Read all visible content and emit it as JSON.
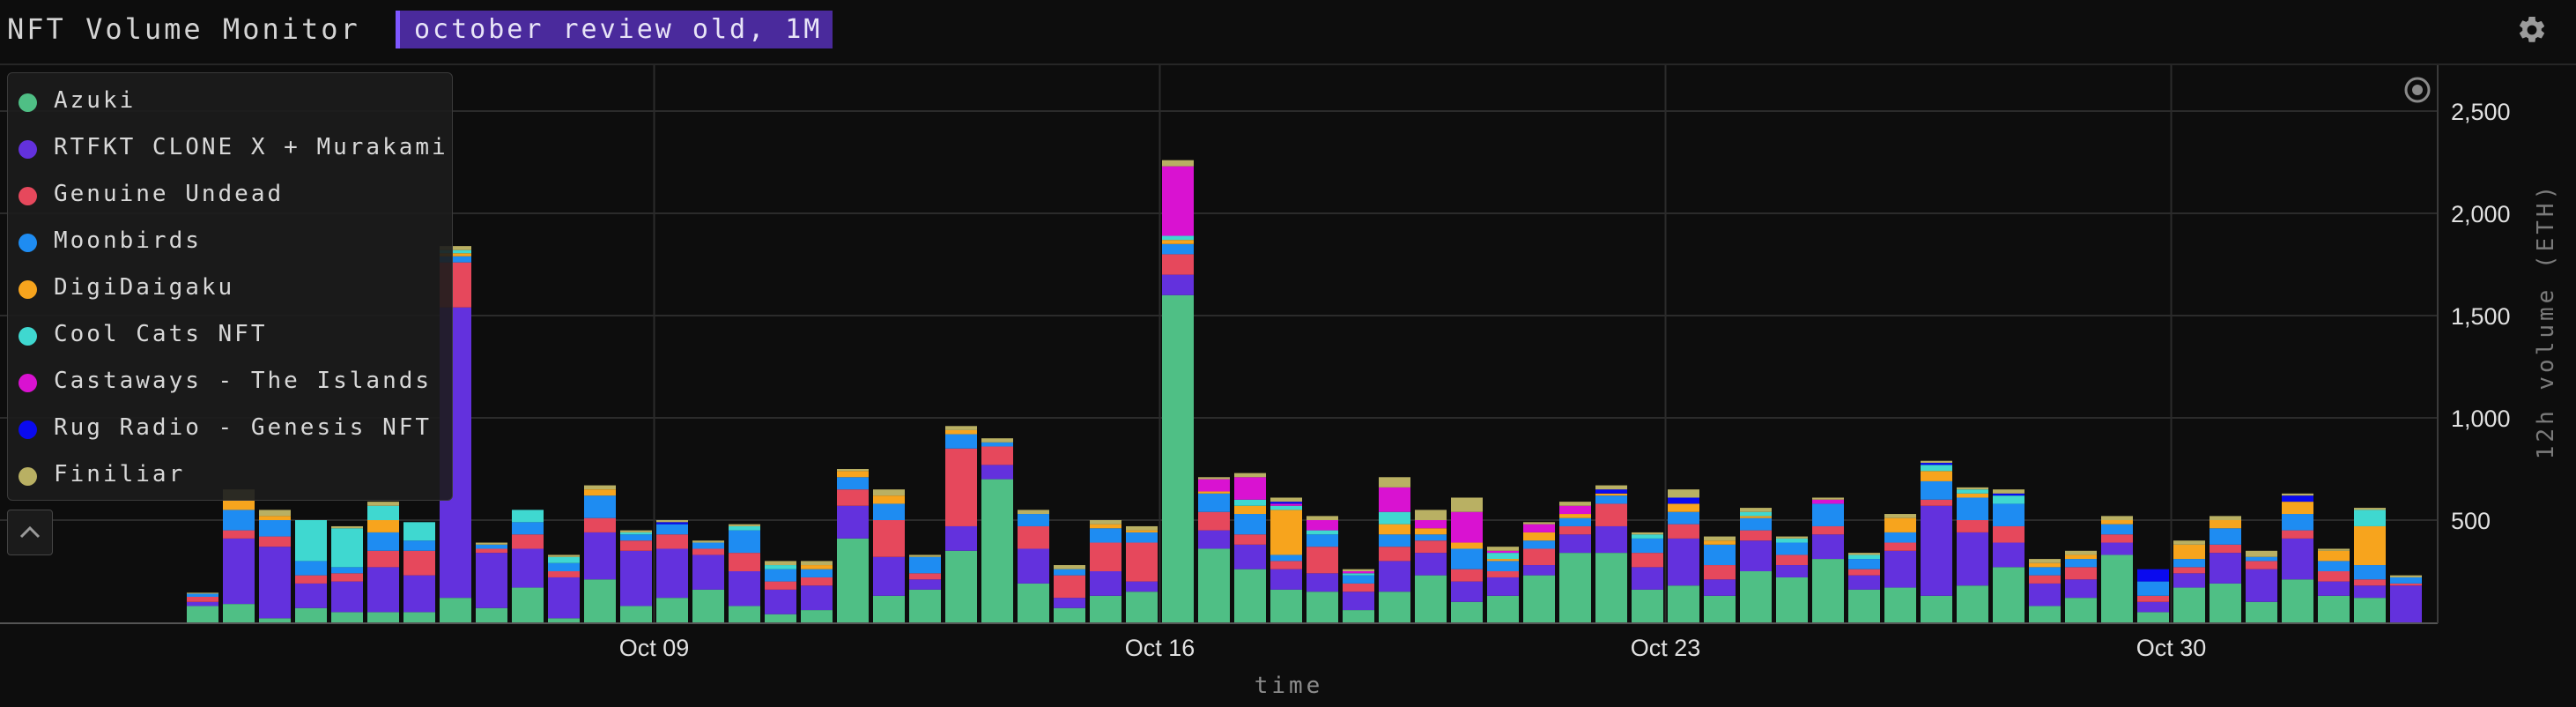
{
  "app": {
    "title": "NFT Volume Monitor",
    "range_label": "october review old, 1M"
  },
  "colors": {
    "Azuki": "#4fbf85",
    "RTFKT CLONE X + Murakami": "#6331dd",
    "Genuine Undead": "#e6485c",
    "Moonbirds": "#1e8cf2",
    "DigiDaigaku": "#f7a41d",
    "Cool Cats NFT": "#3fd8d0",
    "Castaways - The Islands": "#d912d1",
    "Rug Radio - Genesis NFT": "#0a0aef",
    "Finiliar": "#b9b063"
  },
  "legend": {
    "items": [
      {
        "label": "Azuki",
        "color": "#4fbf85"
      },
      {
        "label": "RTFKT CLONE X + Murakami",
        "color": "#6331dd"
      },
      {
        "label": "Genuine Undead",
        "color": "#e6485c"
      },
      {
        "label": "Moonbirds",
        "color": "#1e8cf2"
      },
      {
        "label": "DigiDaigaku",
        "color": "#f7a41d"
      },
      {
        "label": "Cool Cats NFT",
        "color": "#3fd8d0"
      },
      {
        "label": "Castaways - The Islands",
        "color": "#d912d1"
      },
      {
        "label": "Rug Radio - Genesis NFT",
        "color": "#0a0aef"
      },
      {
        "label": "Finiliar",
        "color": "#b9b063"
      }
    ]
  },
  "icons": {
    "settings": "gear-icon",
    "collapse": "chevron-up-icon",
    "focus": "target-icon"
  },
  "chart_data": {
    "type": "bar",
    "stacked": true,
    "xlabel": "time",
    "ylabel": "12h volume (ETH)",
    "ylim": [
      0,
      2650
    ],
    "yticks": [
      500,
      1000,
      1500,
      2000,
      2500
    ],
    "ytick_labels": [
      "500",
      "1,000",
      "1,500",
      "2,000",
      "2,500"
    ],
    "y_axis_side": "right",
    "grid": true,
    "legend_position": "top-left",
    "x_start": "Oct 02 12:00",
    "x_step_hours": 12,
    "x_ticks": [
      {
        "index": 13,
        "label": "Oct 09"
      },
      {
        "index": 27,
        "label": "Oct 16"
      },
      {
        "index": 41,
        "label": "Oct 23"
      },
      {
        "index": 55,
        "label": "Oct 30"
      }
    ],
    "series_order": [
      "Azuki",
      "RTFKT CLONE X + Murakami",
      "Genuine Undead",
      "Moonbirds",
      "DigiDaigaku",
      "Cool Cats NFT",
      "Castaways - The Islands",
      "Rug Radio - Genesis NFT",
      "Finiliar"
    ],
    "bars": [
      {
        "Azuki": 80,
        "RTFKT CLONE X + Murakami": 20,
        "Genuine Undead": 25,
        "Moonbirds": 15,
        "Finiliar": 5
      },
      {
        "Azuki": 90,
        "RTFKT CLONE X + Murakami": 320,
        "Genuine Undead": 40,
        "Moonbirds": 100,
        "DigiDaigaku": 50,
        "Finiliar": 50
      },
      {
        "Azuki": 20,
        "RTFKT CLONE X + Murakami": 350,
        "Genuine Undead": 50,
        "Moonbirds": 80,
        "DigiDaigaku": 20,
        "Finiliar": 30
      },
      {
        "Azuki": 70,
        "RTFKT CLONE X + Murakami": 120,
        "Genuine Undead": 40,
        "Moonbirds": 70,
        "Cool Cats NFT": 200
      },
      {
        "Azuki": 50,
        "RTFKT CLONE X + Murakami": 150,
        "Genuine Undead": 40,
        "Moonbirds": 30,
        "Cool Cats NFT": 190,
        "Finiliar": 10
      },
      {
        "Azuki": 50,
        "RTFKT CLONE X + Murakami": 220,
        "Genuine Undead": 80,
        "Moonbirds": 90,
        "DigiDaigaku": 60,
        "Cool Cats NFT": 70,
        "Finiliar": 20
      },
      {
        "Azuki": 50,
        "RTFKT CLONE X + Murakami": 180,
        "Genuine Undead": 120,
        "Moonbirds": 50,
        "Cool Cats NFT": 90
      },
      {
        "Azuki": 120,
        "RTFKT CLONE X + Murakami": 1420,
        "Genuine Undead": 220,
        "Moonbirds": 30,
        "DigiDaigaku": 15,
        "Cool Cats NFT": 15,
        "Finiliar": 20
      },
      {
        "Azuki": 70,
        "RTFKT CLONE X + Murakami": 270,
        "Genuine Undead": 20,
        "Moonbirds": 20,
        "Finiliar": 10
      },
      {
        "Azuki": 170,
        "RTFKT CLONE X + Murakami": 190,
        "Genuine Undead": 70,
        "Moonbirds": 60,
        "Cool Cats NFT": 60
      },
      {
        "Azuki": 20,
        "RTFKT CLONE X + Murakami": 200,
        "Genuine Undead": 30,
        "Moonbirds": 40,
        "Cool Cats NFT": 30,
        "Finiliar": 10
      },
      {
        "Azuki": 210,
        "RTFKT CLONE X + Murakami": 230,
        "Genuine Undead": 70,
        "Moonbirds": 110,
        "DigiDaigaku": 30,
        "Finiliar": 20
      },
      {
        "Azuki": 80,
        "RTFKT CLONE X + Murakami": 270,
        "Genuine Undead": 50,
        "Moonbirds": 30,
        "Cool Cats NFT": 10,
        "Finiliar": 10
      },
      {
        "Azuki": 120,
        "RTFKT CLONE X + Murakami": 240,
        "Genuine Undead": 70,
        "Moonbirds": 50,
        "Rug Radio - Genesis NFT": 10,
        "Finiliar": 10
      },
      {
        "Azuki": 160,
        "RTFKT CLONE X + Murakami": 170,
        "Genuine Undead": 30,
        "Moonbirds": 30,
        "Finiliar": 10
      },
      {
        "Azuki": 80,
        "RTFKT CLONE X + Murakami": 170,
        "Genuine Undead": 90,
        "Moonbirds": 110,
        "Cool Cats NFT": 20,
        "Finiliar": 10
      },
      {
        "Azuki": 40,
        "RTFKT CLONE X + Murakami": 120,
        "Genuine Undead": 40,
        "Moonbirds": 60,
        "Cool Cats NFT": 20,
        "Finiliar": 20
      },
      {
        "Azuki": 60,
        "RTFKT CLONE X + Murakami": 120,
        "Genuine Undead": 40,
        "Moonbirds": 40,
        "DigiDaigaku": 20,
        "Finiliar": 20
      },
      {
        "Azuki": 410,
        "RTFKT CLONE X + Murakami": 160,
        "Genuine Undead": 80,
        "Moonbirds": 60,
        "DigiDaigaku": 30,
        "Finiliar": 10
      },
      {
        "Azuki": 130,
        "RTFKT CLONE X + Murakami": 190,
        "Genuine Undead": 180,
        "Moonbirds": 80,
        "DigiDaigaku": 40,
        "Finiliar": 30
      },
      {
        "Azuki": 160,
        "RTFKT CLONE X + Murakami": 50,
        "Genuine Undead": 30,
        "Moonbirds": 80,
        "Finiliar": 10
      },
      {
        "Azuki": 350,
        "RTFKT CLONE X + Murakami": 120,
        "Genuine Undead": 380,
        "Moonbirds": 70,
        "DigiDaigaku": 20,
        "Finiliar": 20
      },
      {
        "Azuki": 700,
        "RTFKT CLONE X + Murakami": 70,
        "Genuine Undead": 90,
        "Moonbirds": 20,
        "Finiliar": 20
      },
      {
        "Azuki": 190,
        "RTFKT CLONE X + Murakami": 170,
        "Genuine Undead": 110,
        "Moonbirds": 60,
        "Finiliar": 20
      },
      {
        "Azuki": 70,
        "RTFKT CLONE X + Murakami": 50,
        "Genuine Undead": 110,
        "Moonbirds": 30,
        "Finiliar": 20
      },
      {
        "Azuki": 130,
        "RTFKT CLONE X + Murakami": 120,
        "Genuine Undead": 140,
        "Moonbirds": 70,
        "DigiDaigaku": 20,
        "Finiliar": 20
      },
      {
        "Azuki": 150,
        "RTFKT CLONE X + Murakami": 50,
        "Genuine Undead": 190,
        "Moonbirds": 50,
        "DigiDaigaku": 10,
        "Finiliar": 20
      },
      {
        "Azuki": 1600,
        "RTFKT CLONE X + Murakami": 100,
        "Genuine Undead": 100,
        "Moonbirds": 50,
        "DigiDaigaku": 20,
        "Cool Cats NFT": 20,
        "Castaways - The Islands": 340,
        "Finiliar": 30
      },
      {
        "Azuki": 360,
        "RTFKT CLONE X + Murakami": 90,
        "Genuine Undead": 90,
        "Moonbirds": 90,
        "DigiDaigaku": 10,
        "Castaways - The Islands": 60,
        "Finiliar": 10
      },
      {
        "Azuki": 260,
        "RTFKT CLONE X + Murakami": 120,
        "Genuine Undead": 50,
        "Moonbirds": 100,
        "DigiDaigaku": 40,
        "Cool Cats NFT": 30,
        "Castaways - The Islands": 110,
        "Finiliar": 20
      },
      {
        "Azuki": 160,
        "RTFKT CLONE X + Murakami": 100,
        "Genuine Undead": 40,
        "Moonbirds": 30,
        "DigiDaigaku": 220,
        "Cool Cats NFT": 20,
        "Castaways - The Islands": 10,
        "Rug Radio - Genesis NFT": 10,
        "Finiliar": 20
      },
      {
        "Azuki": 150,
        "RTFKT CLONE X + Murakami": 90,
        "Genuine Undead": 130,
        "Moonbirds": 60,
        "Cool Cats NFT": 20,
        "Castaways - The Islands": 50,
        "Finiliar": 20
      },
      {
        "Azuki": 60,
        "RTFKT CLONE X + Murakami": 90,
        "Genuine Undead": 40,
        "Moonbirds": 40,
        "Cool Cats NFT": 10,
        "Castaways - The Islands": 10,
        "Finiliar": 10
      },
      {
        "Azuki": 150,
        "RTFKT CLONE X + Murakami": 150,
        "Genuine Undead": 70,
        "Moonbirds": 60,
        "DigiDaigaku": 50,
        "Cool Cats NFT": 60,
        "Castaways - The Islands": 120,
        "Finiliar": 50
      },
      {
        "Azuki": 230,
        "RTFKT CLONE X + Murakami": 110,
        "Genuine Undead": 60,
        "Moonbirds": 30,
        "DigiDaigaku": 30,
        "Castaways - The Islands": 40,
        "Finiliar": 50
      },
      {
        "Azuki": 100,
        "RTFKT CLONE X + Murakami": 100,
        "Genuine Undead": 60,
        "Moonbirds": 100,
        "DigiDaigaku": 30,
        "Castaways - The Islands": 150,
        "Finiliar": 70
      },
      {
        "Azuki": 130,
        "RTFKT CLONE X + Murakami": 90,
        "Genuine Undead": 30,
        "Moonbirds": 50,
        "DigiDaigaku": 10,
        "Cool Cats NFT": 30,
        "Castaways - The Islands": 10,
        "Finiliar": 20
      },
      {
        "Azuki": 230,
        "RTFKT CLONE X + Murakami": 50,
        "Genuine Undead": 80,
        "Moonbirds": 40,
        "DigiDaigaku": 40,
        "Castaways - The Islands": 40,
        "Finiliar": 10
      },
      {
        "Azuki": 340,
        "RTFKT CLONE X + Murakami": 90,
        "Genuine Undead": 40,
        "Moonbirds": 40,
        "DigiDaigaku": 20,
        "Castaways - The Islands": 40,
        "Finiliar": 20
      },
      {
        "Azuki": 340,
        "RTFKT CLONE X + Murakami": 130,
        "Genuine Undead": 110,
        "Moonbirds": 40,
        "DigiDaigaku": 10,
        "Rug Radio - Genesis NFT": 20,
        "Finiliar": 20
      },
      {
        "Azuki": 160,
        "RTFKT CLONE X + Murakami": 110,
        "Genuine Undead": 70,
        "Moonbirds": 70,
        "Cool Cats NFT": 20,
        "Finiliar": 10
      },
      {
        "Azuki": 180,
        "RTFKT CLONE X + Murakami": 230,
        "Genuine Undead": 70,
        "Moonbirds": 60,
        "DigiDaigaku": 40,
        "Rug Radio - Genesis NFT": 30,
        "Finiliar": 40
      },
      {
        "Azuki": 130,
        "RTFKT CLONE X + Murakami": 80,
        "Genuine Undead": 70,
        "Moonbirds": 100,
        "DigiDaigaku": 20,
        "Finiliar": 20
      },
      {
        "Azuki": 250,
        "RTFKT CLONE X + Murakami": 150,
        "Genuine Undead": 50,
        "Moonbirds": 60,
        "DigiDaigaku": 10,
        "Cool Cats NFT": 20,
        "Finiliar": 20
      },
      {
        "Azuki": 220,
        "RTFKT CLONE X + Murakami": 60,
        "Genuine Undead": 50,
        "Moonbirds": 60,
        "Cool Cats NFT": 20,
        "Finiliar": 10
      },
      {
        "Azuki": 310,
        "RTFKT CLONE X + Murakami": 120,
        "Genuine Undead": 40,
        "Moonbirds": 110,
        "Castaways - The Islands": 20,
        "Finiliar": 10
      },
      {
        "Azuki": 160,
        "RTFKT CLONE X + Murakami": 70,
        "Genuine Undead": 30,
        "Moonbirds": 50,
        "Cool Cats NFT": 20,
        "Finiliar": 10
      },
      {
        "Azuki": 170,
        "RTFKT CLONE X + Murakami": 180,
        "Genuine Undead": 40,
        "Moonbirds": 50,
        "DigiDaigaku": 70,
        "Finiliar": 20
      },
      {
        "Azuki": 130,
        "RTFKT CLONE X + Murakami": 440,
        "Genuine Undead": 30,
        "Moonbirds": 90,
        "DigiDaigaku": 50,
        "Cool Cats NFT": 30,
        "Rug Radio - Genesis NFT": 10,
        "Finiliar": 10
      },
      {
        "Azuki": 180,
        "RTFKT CLONE X + Murakami": 260,
        "Genuine Undead": 60,
        "Moonbirds": 110,
        "DigiDaigaku": 20,
        "Cool Cats NFT": 20,
        "Finiliar": 10
      },
      {
        "Azuki": 270,
        "RTFKT CLONE X + Murakami": 120,
        "Genuine Undead": 80,
        "Moonbirds": 110,
        "Cool Cats NFT": 40,
        "Rug Radio - Genesis NFT": 10,
        "Finiliar": 20
      },
      {
        "Azuki": 80,
        "RTFKT CLONE X + Murakami": 110,
        "Genuine Undead": 40,
        "Moonbirds": 40,
        "DigiDaigaku": 20,
        "Finiliar": 20
      },
      {
        "Azuki": 120,
        "RTFKT CLONE X + Murakami": 90,
        "Genuine Undead": 60,
        "Moonbirds": 40,
        "DigiDaigaku": 20,
        "Finiliar": 20
      },
      {
        "Azuki": 330,
        "RTFKT CLONE X + Murakami": 60,
        "Genuine Undead": 40,
        "Moonbirds": 50,
        "DigiDaigaku": 20,
        "Finiliar": 20
      },
      {
        "Azuki": 50,
        "RTFKT CLONE X + Murakami": 50,
        "Genuine Undead": 30,
        "Moonbirds": 70,
        "Rug Radio - Genesis NFT": 60
      },
      {
        "Azuki": 170,
        "RTFKT CLONE X + Murakami": 70,
        "Genuine Undead": 30,
        "Moonbirds": 40,
        "DigiDaigaku": 70,
        "Finiliar": 20
      },
      {
        "Azuki": 190,
        "RTFKT CLONE X + Murakami": 150,
        "Genuine Undead": 40,
        "Moonbirds": 80,
        "DigiDaigaku": 40,
        "Finiliar": 20
      },
      {
        "Azuki": 100,
        "RTFKT CLONE X + Murakami": 160,
        "Genuine Undead": 40,
        "Moonbirds": 20,
        "Finiliar": 30
      },
      {
        "Azuki": 210,
        "RTFKT CLONE X + Murakami": 200,
        "Genuine Undead": 40,
        "Moonbirds": 80,
        "DigiDaigaku": 60,
        "Rug Radio - Genesis NFT": 30,
        "Finiliar": 10
      },
      {
        "Azuki": 130,
        "RTFKT CLONE X + Murakami": 70,
        "Genuine Undead": 50,
        "Moonbirds": 50,
        "DigiDaigaku": 50,
        "Finiliar": 10
      },
      {
        "Azuki": 120,
        "RTFKT CLONE X + Murakami": 60,
        "Genuine Undead": 30,
        "Moonbirds": 70,
        "DigiDaigaku": 190,
        "Cool Cats NFT": 80,
        "Finiliar": 10
      },
      {
        "Azuki": 0,
        "RTFKT CLONE X + Murakami": 180,
        "Genuine Undead": 10,
        "Moonbirds": 30,
        "Finiliar": 10
      }
    ]
  }
}
